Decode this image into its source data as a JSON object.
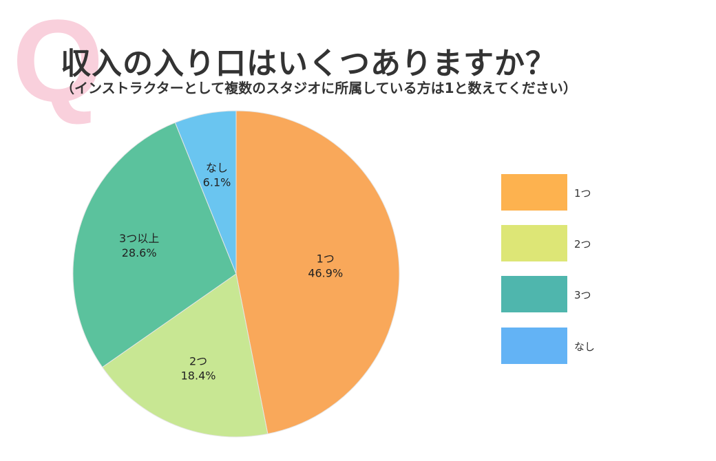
{
  "header": {
    "q_mark": "Q",
    "title": "収入の入り口はいくつありますか？",
    "subtitle": "（インストラクターとして複数のスタジオに所属している方は1と数えてください）"
  },
  "chart_data": {
    "type": "pie",
    "start_angle": "top",
    "direction": "clockwise",
    "slices": [
      {
        "label": "1つ",
        "value": 46.9,
        "value_label": "46.9%",
        "color": "#F9A85A"
      },
      {
        "label": "2つ",
        "value": 18.4,
        "value_label": "18.4%",
        "color": "#C8E793"
      },
      {
        "label": "3つ以上",
        "value": 28.6,
        "value_label": "28.6%",
        "color": "#5BC29D"
      },
      {
        "label": "なし",
        "value": 6.1,
        "value_label": "6.1%",
        "color": "#6AC5F0"
      }
    ],
    "legend": {
      "placement": "right",
      "entries": [
        {
          "label": "1つ",
          "color": "#FDB24F"
        },
        {
          "label": "2つ",
          "color": "#DDE676"
        },
        {
          "label": "3つ",
          "color": "#4FB6AD"
        },
        {
          "label": "なし",
          "color": "#63B3F5"
        }
      ]
    }
  }
}
